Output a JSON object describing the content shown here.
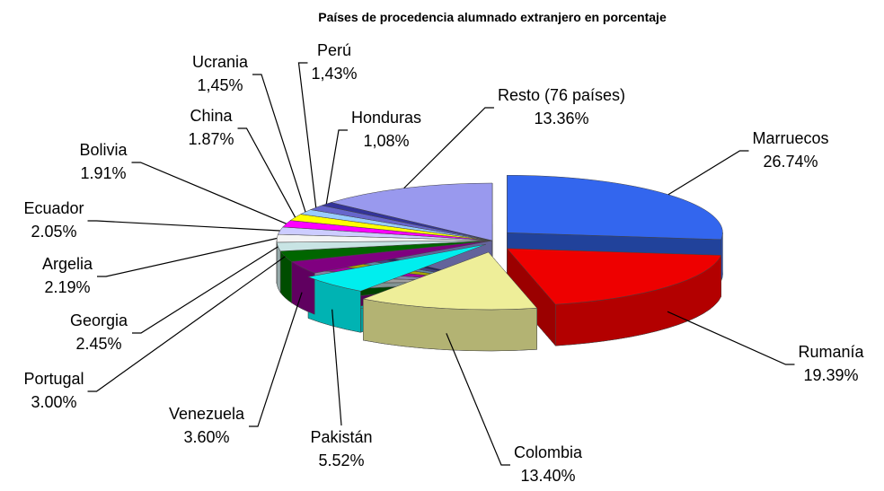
{
  "chart_data": {
    "type": "pie",
    "title": "Países de procedencia alumnado extranjero en porcentaje",
    "categories": [
      "Marruecos",
      "Rumanía",
      "Colombia",
      "Pakistán",
      "Venezuela",
      "Portugal",
      "Georgia",
      "Argelia",
      "Ecuador",
      "Bolivia",
      "China",
      "Ucrania",
      "Perú",
      "Honduras",
      "Resto (76  países)"
    ],
    "values": [
      26.74,
      19.39,
      13.4,
      5.52,
      3.6,
      3.0,
      2.45,
      2.19,
      2.05,
      1.91,
      1.87,
      1.45,
      1.43,
      1.08,
      13.36
    ],
    "value_labels": [
      "26.74%",
      "19.39%",
      "13.40%",
      "5.52%",
      "3.60%",
      "3.00%",
      "2.45%",
      "2.19%",
      "2.05%",
      "1.91%",
      "1.87%",
      "1,45%",
      "1,43%",
      "1,08%",
      "13.36%"
    ],
    "colors": [
      "#3366ee",
      "#ee0000",
      "#eeee99",
      "#00eeee",
      "#800080",
      "#006600",
      "#c8e4e4",
      "#f4f4f4",
      "#ccccff",
      "#ff00ff",
      "#ffff00",
      "#99ccff",
      "#6666cc",
      "#333399",
      "#9999ee"
    ]
  }
}
